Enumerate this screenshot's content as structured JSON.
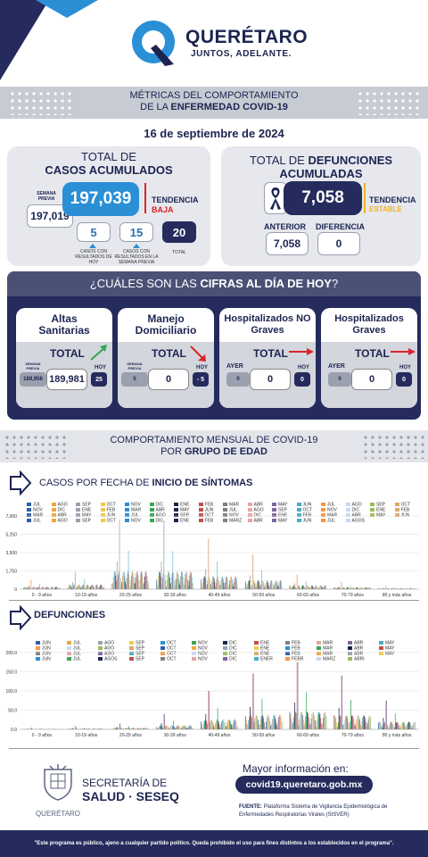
{
  "header": {
    "brand": "QUERÉTARO",
    "slogan": "JUNTOS, ADELANTE."
  },
  "banner": {
    "line1": "MÉTRICAS DEL COMPORTAMIENTO",
    "line2_prefix": "DE LA ",
    "line2_bold": "ENFERMEDAD COVID-19"
  },
  "date": "16 de septiembre de 2024",
  "cases": {
    "title1": "TOTAL DE",
    "title2": "CASOS ACUMULADOS",
    "total": "197,039",
    "prev_label": "SEMANA PREVIA",
    "prev_value": "197,019",
    "trend_label": "TENDENCIA",
    "trend_value": "BAJA",
    "box1_value": "5",
    "box1_caption": "CASOS CON RESULTADOS DE HOY",
    "box2_value": "15",
    "box2_caption": "CASOS CON RESULTADOS EN LA SEMANA PREVIA",
    "box3_value": "20",
    "box3_caption": "TOTAL"
  },
  "deaths": {
    "title_prefix": "TOTAL DE ",
    "title_bold1": "DEFUNCIONES",
    "title_bold2": "ACUMULADAS",
    "total": "7,058",
    "trend_label": "TENDENCIA",
    "trend_value": "ESTABLE",
    "prev_label": "ANTERIOR",
    "prev_value": "7,058",
    "diff_label": "DIFERENCIA",
    "diff_value": "0"
  },
  "today": {
    "q_prefix": "¿CUÁLES SON LAS ",
    "q_bold": "CIFRAS AL DÍA DE HOY",
    "q_suffix": "?",
    "cards": [
      {
        "title": "Altas Sanitarias",
        "total_label": "TOTAL",
        "left_label": "SEMANA PREVIA",
        "left_value": "189,956",
        "value": "189,981",
        "right_label": "HOY",
        "right_value": "25"
      },
      {
        "title": "Manejo Domiciliario",
        "total_label": "TOTAL",
        "left_label": "SEMANA PREVIA",
        "left_value": "5",
        "value": "0",
        "right_label": "HOY",
        "right_value": "- 5"
      },
      {
        "title": "Hospitalizados NO Graves",
        "total_label": "TOTAL",
        "left_label": "AYER",
        "left_value": "0",
        "value": "0",
        "right_label": "HOY",
        "right_value": "0"
      },
      {
        "title": "Hospitalizados Graves",
        "total_label": "TOTAL",
        "left_label": "AYER",
        "left_value": "0",
        "value": "0",
        "right_label": "HOY",
        "right_value": "0"
      }
    ]
  },
  "monthly": {
    "line1": "COMPORTAMIENTO MENSUAL DE COVID-19",
    "line2_prefix": "POR ",
    "line2_bold": "GRUPO DE EDAD"
  },
  "colors": {
    "navy": "#1c2450",
    "blue": "#2b8fd6",
    "red": "#d9252b",
    "gold": "#f2b221",
    "slate": "#5d6680"
  },
  "chart_data": [
    {
      "type": "bar",
      "title": "CASOS POR FECHA DE INICIO DE SÍNTOMAS",
      "ylim": [
        0,
        7000
      ],
      "yticks": [
        "7,000",
        "5,250",
        "3,500",
        "1,750",
        "0"
      ],
      "categories": [
        "0 - 9 años",
        "10-19 años",
        "20-29 años",
        "30-39 años",
        "40-49 años",
        "50-59 años",
        "60-69 años",
        "70-79 años",
        "80 y más años"
      ],
      "legend": [
        "JUL",
        "AGO",
        "SEP",
        "OCT",
        "NOV",
        "DIC",
        "ENE",
        "FEB",
        "MAR",
        "ABR",
        "MAY",
        "JUN",
        "JUL",
        "AGO",
        "SEP",
        "OCT",
        "NOV",
        "DIC",
        "ENE",
        "FEB",
        "MAR",
        "ABR",
        "MAY",
        "JUN",
        "JUL",
        "AGO",
        "SEP",
        "OCT",
        "NOV",
        "DIC",
        "ENE",
        "FEB",
        "MAR",
        "ABR",
        "MAY",
        "JUN",
        "JUL",
        "AGO",
        "SEP",
        "OCT",
        "NOV",
        "DIC",
        "ENE",
        "FEB",
        "MAR",
        "ABR",
        "MAY",
        "JUN",
        "JUL",
        "AGO",
        "SEP",
        "OCT",
        "NOV",
        "DIC",
        "ENE",
        "FEB",
        "MARZ",
        "ABR",
        "MAY",
        "JUN",
        "JUL",
        "AGOS"
      ],
      "peaks": [
        900,
        1700,
        6700,
        6600,
        4800,
        3300,
        1400,
        700,
        300
      ]
    },
    {
      "type": "bar",
      "title": "DEFUNCIONES",
      "ylim": [
        0,
        200
      ],
      "yticks": [
        "200.0",
        "150.0",
        "100.0",
        "50.0",
        "0.0"
      ],
      "categories": [
        "0 - 9 años",
        "10-19 años",
        "20-29 años",
        "30-39 años",
        "40-49 años",
        "50-59 años",
        "60-69 años",
        "70-79 años",
        "80 y más años"
      ],
      "legend": [
        "JUN",
        "JUL",
        "AGO",
        "SEP",
        "OCT",
        "NOV",
        "DIC",
        "ENE",
        "FEB",
        "MAR",
        "ABR",
        "MAY",
        "JUN",
        "JUL",
        "AGO",
        "SEP",
        "OCT",
        "NOV",
        "DIC",
        "ENE",
        "FEB",
        "MAR",
        "ABR",
        "MAY",
        "JUN",
        "JUL",
        "AGO",
        "SEP",
        "OCT",
        "NOV",
        "DIC",
        "ENE",
        "FEB",
        "MAR",
        "ABR",
        "MAY",
        "JUN",
        "JUL",
        "AGOS",
        "SEP",
        "OCT",
        "NOV",
        "DIC",
        "ENER",
        "FEBR",
        "MARZ",
        "ABRI"
      ],
      "peaks": [
        4,
        8,
        15,
        40,
        100,
        145,
        175,
        140,
        75
      ]
    }
  ],
  "footer": {
    "sec1": "SECRETARÍA DE",
    "sec2": "SALUD · SESEQ",
    "gov": "QUERÉTARO",
    "more_info": "Mayor información en:",
    "url": "covid19.queretaro.gob.mx",
    "source_bold": "FUENTE:",
    "source_text": " Plataforma Sistema de Vigilancia Epidemiológica de Enfermedades Respiratorias Virales (SISVER)",
    "disclaimer": "\"Este programa es público, ajeno a cualquier partido político. Queda prohibido el uso para fines distintos a los establecidos en el programa\"."
  }
}
